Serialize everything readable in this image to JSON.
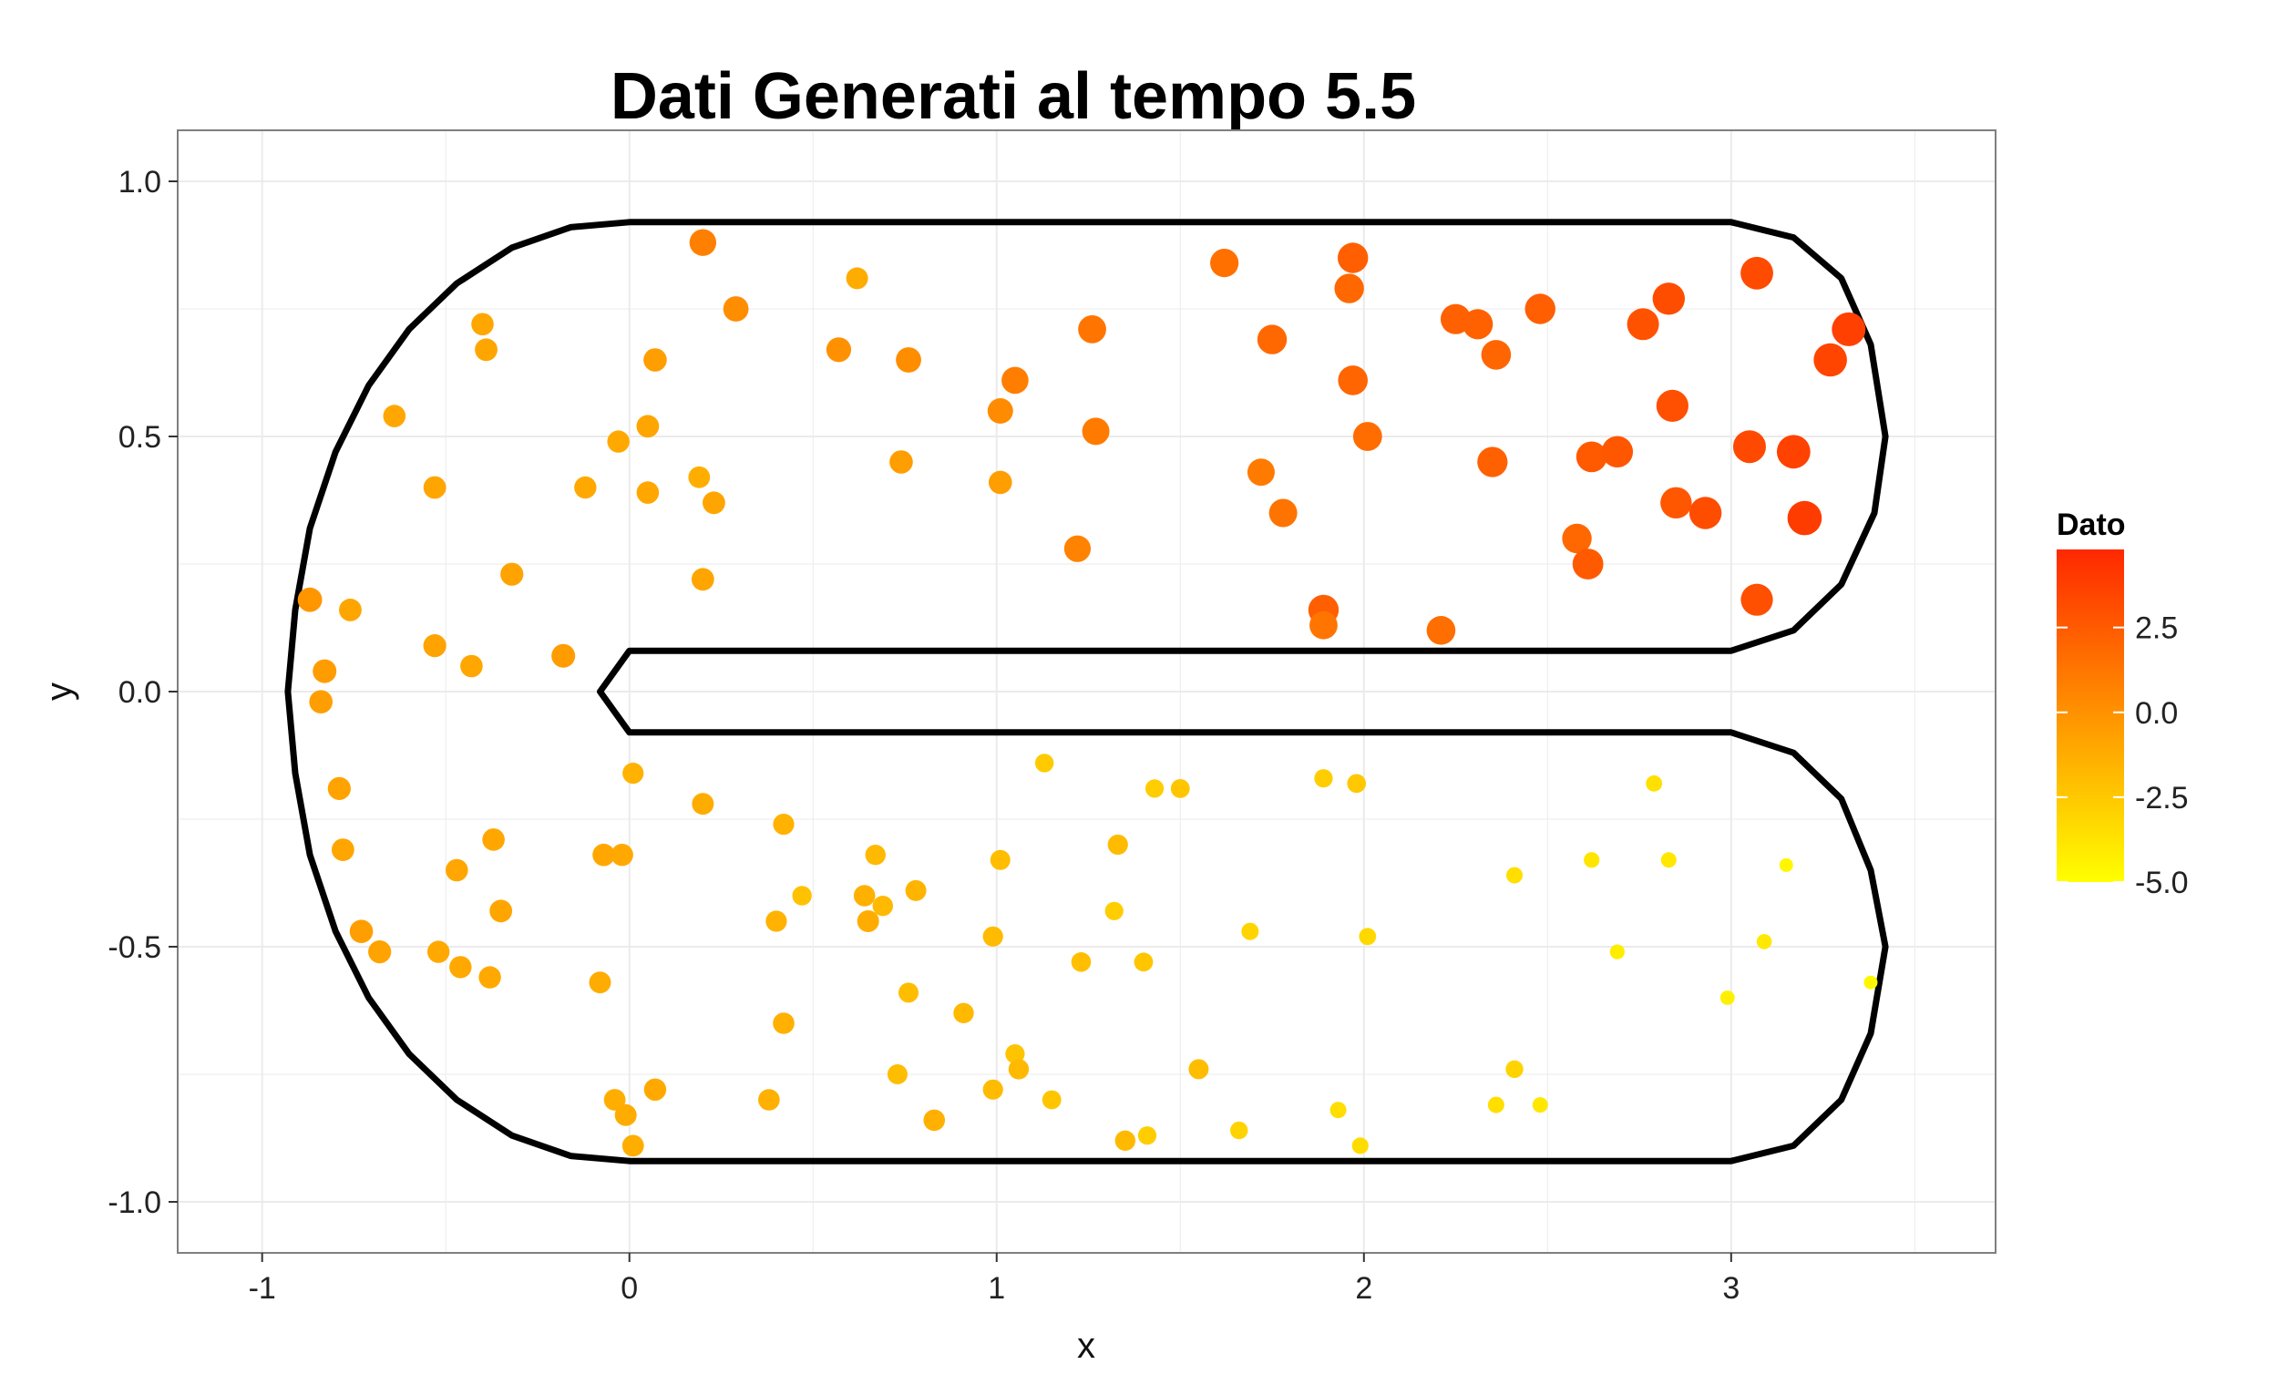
{
  "chart_data": {
    "type": "scatter",
    "title": "Dati Generati al tempo 5.5",
    "xlabel": "x",
    "ylabel": "y",
    "xlim": [
      -1.23,
      3.72
    ],
    "ylim": [
      -1.1,
      1.1
    ],
    "x_ticks": [
      -1,
      0,
      1,
      2,
      3
    ],
    "x_tick_labels": [
      "-1",
      "0",
      "1",
      "2",
      "3"
    ],
    "y_ticks": [
      -1.0,
      -0.5,
      0.0,
      0.5,
      1.0
    ],
    "y_tick_labels": [
      "-1.0",
      "-0.5",
      "0.0",
      "0.5",
      "1.0"
    ],
    "grid": true,
    "legend": {
      "title": "Dato",
      "placement": "right",
      "range": [
        -5.0,
        4.8
      ],
      "ticks": [
        2.5,
        0.0,
        -2.5,
        -5.0
      ],
      "tick_labels": [
        "2.5",
        "0.0",
        "-2.5",
        "-5.0"
      ],
      "low_color": "#FFFF00",
      "high_color": "#FF2800"
    },
    "colors": {
      "boundary": "#000000",
      "panel_background": "#FFFFFF",
      "grid": "#EBEBEB",
      "panel_border": "#7F7F7F"
    },
    "boundary": [
      [
        0,
        0.92
      ],
      [
        3.0,
        0.92
      ],
      [
        3.17,
        0.89
      ],
      [
        3.3,
        0.81
      ],
      [
        3.38,
        0.68
      ],
      [
        3.42,
        0.5
      ],
      [
        3.39,
        0.35
      ],
      [
        3.3,
        0.21
      ],
      [
        3.17,
        0.12
      ],
      [
        3.0,
        0.08
      ],
      [
        0,
        0.08
      ],
      [
        -0.08,
        0.0
      ],
      [
        0,
        -0.08
      ],
      [
        3.0,
        -0.08
      ],
      [
        3.17,
        -0.12
      ],
      [
        3.3,
        -0.21
      ],
      [
        3.38,
        -0.35
      ],
      [
        3.42,
        -0.5
      ],
      [
        3.38,
        -0.67
      ],
      [
        3.3,
        -0.8
      ],
      [
        3.17,
        -0.89
      ],
      [
        3.0,
        -0.92
      ],
      [
        0,
        -0.92
      ],
      [
        -0.16,
        -0.91
      ],
      [
        -0.32,
        -0.87
      ],
      [
        -0.47,
        -0.8
      ],
      [
        -0.6,
        -0.71
      ],
      [
        -0.71,
        -0.6
      ],
      [
        -0.8,
        -0.47
      ],
      [
        -0.87,
        -0.32
      ],
      [
        -0.91,
        -0.16
      ],
      [
        -0.93,
        0.0
      ],
      [
        -0.91,
        0.16
      ],
      [
        -0.87,
        0.32
      ],
      [
        -0.8,
        0.47
      ],
      [
        -0.71,
        0.6
      ],
      [
        -0.6,
        0.71
      ],
      [
        -0.47,
        0.8
      ],
      [
        -0.32,
        0.87
      ],
      [
        -0.16,
        0.91
      ],
      [
        0,
        0.92
      ]
    ],
    "points": [
      {
        "x": -0.87,
        "y": 0.18,
        "value": -0.2
      },
      {
        "x": -0.83,
        "y": 0.04,
        "value": -0.5
      },
      {
        "x": -0.84,
        "y": -0.02,
        "value": -0.6
      },
      {
        "x": -0.76,
        "y": 0.16,
        "value": -0.9
      },
      {
        "x": -0.79,
        "y": -0.19,
        "value": -0.8
      },
      {
        "x": -0.78,
        "y": -0.31,
        "value": -0.9
      },
      {
        "x": -0.73,
        "y": -0.47,
        "value": -0.6
      },
      {
        "x": -0.68,
        "y": -0.51,
        "value": -0.8
      },
      {
        "x": -0.64,
        "y": 0.54,
        "value": -1.0
      },
      {
        "x": -0.53,
        "y": 0.4,
        "value": -0.9
      },
      {
        "x": -0.53,
        "y": 0.09,
        "value": -0.8
      },
      {
        "x": -0.52,
        "y": -0.51,
        "value": -1.1
      },
      {
        "x": -0.47,
        "y": -0.35,
        "value": -1.0
      },
      {
        "x": -0.46,
        "y": -0.54,
        "value": -1.1
      },
      {
        "x": -0.43,
        "y": 0.05,
        "value": -1.0
      },
      {
        "x": -0.4,
        "y": 0.72,
        "value": -1.0
      },
      {
        "x": -0.39,
        "y": 0.67,
        "value": -0.9
      },
      {
        "x": -0.38,
        "y": -0.56,
        "value": -1.1
      },
      {
        "x": -0.37,
        "y": -0.29,
        "value": -1.0
      },
      {
        "x": -0.35,
        "y": -0.43,
        "value": -0.9
      },
      {
        "x": -0.32,
        "y": 0.23,
        "value": -0.8
      },
      {
        "x": -0.18,
        "y": 0.07,
        "value": -0.5
      },
      {
        "x": -0.12,
        "y": 0.4,
        "value": -1.1
      },
      {
        "x": -0.08,
        "y": -0.57,
        "value": -1.2
      },
      {
        "x": -0.07,
        "y": -0.32,
        "value": -1.0
      },
      {
        "x": -0.03,
        "y": 0.49,
        "value": -1.1
      },
      {
        "x": -0.04,
        "y": -0.8,
        "value": -1.3
      },
      {
        "x": -0.02,
        "y": -0.32,
        "value": -1.1
      },
      {
        "x": -0.01,
        "y": -0.83,
        "value": -1.2
      },
      {
        "x": 0.01,
        "y": -0.89,
        "value": -1.3
      },
      {
        "x": 0.01,
        "y": -0.16,
        "value": -1.5
      },
      {
        "x": 0.05,
        "y": 0.52,
        "value": -0.9
      },
      {
        "x": 0.05,
        "y": 0.39,
        "value": -1.0
      },
      {
        "x": 0.07,
        "y": 0.65,
        "value": -0.6
      },
      {
        "x": 0.07,
        "y": -0.78,
        "value": -1.1
      },
      {
        "x": 0.19,
        "y": 0.42,
        "value": -1.3
      },
      {
        "x": 0.2,
        "y": 0.88,
        "value": 0.8
      },
      {
        "x": 0.2,
        "y": 0.22,
        "value": -0.9
      },
      {
        "x": 0.2,
        "y": -0.22,
        "value": -1.2
      },
      {
        "x": 0.23,
        "y": 0.37,
        "value": -0.9
      },
      {
        "x": 0.29,
        "y": 0.75,
        "value": 0.2
      },
      {
        "x": 0.38,
        "y": -0.8,
        "value": -1.4
      },
      {
        "x": 0.4,
        "y": -0.45,
        "value": -1.5
      },
      {
        "x": 0.42,
        "y": -0.26,
        "value": -1.5
      },
      {
        "x": 0.42,
        "y": -0.65,
        "value": -1.4
      },
      {
        "x": 0.47,
        "y": -0.4,
        "value": -2.2
      },
      {
        "x": 0.57,
        "y": 0.67,
        "value": 0.0
      },
      {
        "x": 0.62,
        "y": 0.81,
        "value": -1.2
      },
      {
        "x": 0.64,
        "y": -0.4,
        "value": -1.4
      },
      {
        "x": 0.65,
        "y": -0.45,
        "value": -1.2
      },
      {
        "x": 0.67,
        "y": -0.32,
        "value": -1.8
      },
      {
        "x": 0.69,
        "y": -0.42,
        "value": -1.8
      },
      {
        "x": 0.74,
        "y": 0.45,
        "value": -0.6
      },
      {
        "x": 0.73,
        "y": -0.75,
        "value": -2.0
      },
      {
        "x": 0.76,
        "y": 0.65,
        "value": 0.2
      },
      {
        "x": 0.76,
        "y": -0.59,
        "value": -2.0
      },
      {
        "x": 0.78,
        "y": -0.39,
        "value": -1.6
      },
      {
        "x": 0.83,
        "y": -0.84,
        "value": -1.4
      },
      {
        "x": 0.91,
        "y": -0.63,
        "value": -1.8
      },
      {
        "x": 0.99,
        "y": -0.48,
        "value": -1.9
      },
      {
        "x": 0.99,
        "y": -0.78,
        "value": -1.9
      },
      {
        "x": 1.01,
        "y": 0.41,
        "value": -0.6
      },
      {
        "x": 1.01,
        "y": 0.55,
        "value": 0.3
      },
      {
        "x": 1.01,
        "y": -0.33,
        "value": -2.0
      },
      {
        "x": 1.05,
        "y": 0.61,
        "value": 0.9
      },
      {
        "x": 1.05,
        "y": -0.71,
        "value": -2.3
      },
      {
        "x": 1.06,
        "y": -0.74,
        "value": -1.8
      },
      {
        "x": 1.13,
        "y": -0.14,
        "value": -2.6
      },
      {
        "x": 1.15,
        "y": -0.8,
        "value": -2.4
      },
      {
        "x": 1.22,
        "y": 0.28,
        "value": 0.7
      },
      {
        "x": 1.23,
        "y": -0.53,
        "value": -2.1
      },
      {
        "x": 1.26,
        "y": 0.71,
        "value": 1.3
      },
      {
        "x": 1.27,
        "y": 0.51,
        "value": 1.0
      },
      {
        "x": 1.32,
        "y": -0.43,
        "value": -2.7
      },
      {
        "x": 1.33,
        "y": -0.3,
        "value": -1.9
      },
      {
        "x": 1.35,
        "y": -0.88,
        "value": -1.8
      },
      {
        "x": 1.4,
        "y": -0.53,
        "value": -2.4
      },
      {
        "x": 1.41,
        "y": -0.87,
        "value": -2.7
      },
      {
        "x": 1.43,
        "y": -0.19,
        "value": -2.7
      },
      {
        "x": 1.5,
        "y": -0.19,
        "value": -2.4
      },
      {
        "x": 1.55,
        "y": -0.74,
        "value": -2.0
      },
      {
        "x": 1.62,
        "y": 0.84,
        "value": 1.5
      },
      {
        "x": 1.66,
        "y": -0.86,
        "value": -3.0
      },
      {
        "x": 1.69,
        "y": -0.47,
        "value": -3.1
      },
      {
        "x": 1.72,
        "y": 0.43,
        "value": 1.0
      },
      {
        "x": 1.75,
        "y": 0.69,
        "value": 1.9
      },
      {
        "x": 1.78,
        "y": 0.35,
        "value": 1.4
      },
      {
        "x": 1.89,
        "y": 0.16,
        "value": 2.3
      },
      {
        "x": 1.89,
        "y": 0.13,
        "value": 1.3
      },
      {
        "x": 1.89,
        "y": -0.17,
        "value": -2.7
      },
      {
        "x": 1.93,
        "y": -0.82,
        "value": -3.5
      },
      {
        "x": 1.96,
        "y": 0.79,
        "value": 1.9
      },
      {
        "x": 1.97,
        "y": 0.85,
        "value": 2.3
      },
      {
        "x": 1.97,
        "y": 0.61,
        "value": 2.0
      },
      {
        "x": 1.98,
        "y": -0.18,
        "value": -2.5
      },
      {
        "x": 1.99,
        "y": -0.89,
        "value": -3.4
      },
      {
        "x": 2.01,
        "y": 0.5,
        "value": 1.7
      },
      {
        "x": 2.01,
        "y": -0.48,
        "value": -3.2
      },
      {
        "x": 2.21,
        "y": 0.12,
        "value": 1.6
      },
      {
        "x": 2.25,
        "y": 0.73,
        "value": 2.2
      },
      {
        "x": 2.31,
        "y": 0.72,
        "value": 2.2
      },
      {
        "x": 2.35,
        "y": 0.45,
        "value": 2.2
      },
      {
        "x": 2.36,
        "y": 0.66,
        "value": 2.0
      },
      {
        "x": 2.36,
        "y": -0.81,
        "value": -3.5
      },
      {
        "x": 2.41,
        "y": -0.36,
        "value": -3.5
      },
      {
        "x": 2.41,
        "y": -0.74,
        "value": -3.0
      },
      {
        "x": 2.48,
        "y": 0.75,
        "value": 2.3
      },
      {
        "x": 2.48,
        "y": -0.81,
        "value": -3.9
      },
      {
        "x": 2.58,
        "y": 0.3,
        "value": 1.9
      },
      {
        "x": 2.61,
        "y": 0.25,
        "value": 2.5
      },
      {
        "x": 2.62,
        "y": 0.46,
        "value": 2.5
      },
      {
        "x": 2.62,
        "y": -0.33,
        "value": -3.8
      },
      {
        "x": 2.69,
        "y": 0.47,
        "value": 2.7
      },
      {
        "x": 2.69,
        "y": -0.51,
        "value": -4.2
      },
      {
        "x": 2.76,
        "y": 0.72,
        "value": 2.9
      },
      {
        "x": 2.79,
        "y": -0.18,
        "value": -3.6
      },
      {
        "x": 2.83,
        "y": 0.77,
        "value": 3.1
      },
      {
        "x": 2.83,
        "y": -0.33,
        "value": -3.9
      },
      {
        "x": 2.84,
        "y": 0.56,
        "value": 3.0
      },
      {
        "x": 2.85,
        "y": 0.37,
        "value": 2.7
      },
      {
        "x": 2.93,
        "y": 0.35,
        "value": 3.1
      },
      {
        "x": 2.99,
        "y": -0.6,
        "value": -4.3
      },
      {
        "x": 3.05,
        "y": 0.48,
        "value": 3.3
      },
      {
        "x": 3.07,
        "y": 0.82,
        "value": 3.2
      },
      {
        "x": 3.07,
        "y": 0.18,
        "value": 3.0
      },
      {
        "x": 3.09,
        "y": -0.49,
        "value": -4.0
      },
      {
        "x": 3.15,
        "y": -0.34,
        "value": -4.6
      },
      {
        "x": 3.17,
        "y": 0.47,
        "value": 3.6
      },
      {
        "x": 3.2,
        "y": 0.34,
        "value": 3.9
      },
      {
        "x": 3.27,
        "y": 0.65,
        "value": 3.5
      },
      {
        "x": 3.32,
        "y": 0.71,
        "value": 3.7
      },
      {
        "x": 3.38,
        "y": -0.57,
        "value": -4.6
      }
    ]
  }
}
